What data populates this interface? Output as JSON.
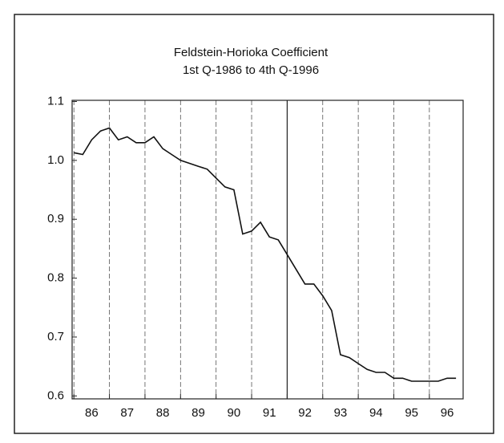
{
  "chart_data": {
    "type": "line",
    "title": [
      "Feldstein-Horioka Coefficient",
      "1st Q-1986 to 4th Q-1996"
    ],
    "x": [
      86,
      86.25,
      86.5,
      86.75,
      87,
      87.25,
      87.5,
      87.75,
      88,
      88.25,
      88.5,
      88.75,
      89,
      89.25,
      89.5,
      89.75,
      90,
      90.25,
      90.5,
      90.75,
      91,
      91.25,
      91.5,
      91.75,
      92,
      92.25,
      92.5,
      92.75,
      93,
      93.25,
      93.5,
      93.75,
      94,
      94.25,
      94.5,
      94.75,
      95,
      95.25,
      95.5,
      95.75,
      96,
      96.25,
      96.5,
      96.75
    ],
    "series": [
      {
        "name": "Feldstein-Horioka Coefficient",
        "color": "#111111",
        "values": [
          1.013,
          1.01,
          1.035,
          1.05,
          1.055,
          1.035,
          1.04,
          1.03,
          1.03,
          1.04,
          1.02,
          1.01,
          1.0,
          0.995,
          0.99,
          0.985,
          0.97,
          0.955,
          0.95,
          0.875,
          0.88,
          0.895,
          0.87,
          0.865,
          0.84,
          0.815,
          0.79,
          0.79,
          0.77,
          0.745,
          0.67,
          0.665,
          0.655,
          0.645,
          0.64,
          0.64,
          0.63,
          0.63,
          0.625,
          0.625,
          0.625,
          0.625,
          0.63,
          0.63
        ]
      }
    ],
    "xlim": [
      85.95,
      96.95
    ],
    "xticks": [
      {
        "value": 86,
        "label": "86"
      },
      {
        "value": 87,
        "label": "87"
      },
      {
        "value": 88,
        "label": "88"
      },
      {
        "value": 89,
        "label": "89"
      },
      {
        "value": 90,
        "label": "90"
      },
      {
        "value": 91,
        "label": "91"
      },
      {
        "value": 92,
        "label": "92"
      },
      {
        "value": 93,
        "label": "93"
      },
      {
        "value": 94,
        "label": "94"
      },
      {
        "value": 95,
        "label": "95"
      },
      {
        "value": 96,
        "label": "96"
      }
    ],
    "ylim": [
      0.595,
      1.102
    ],
    "yticks": [
      0.6,
      0.7,
      0.8,
      0.9,
      {
        "value": 1,
        "label": "1.0"
      },
      1.1
    ],
    "grid": true,
    "vline": 92
  }
}
